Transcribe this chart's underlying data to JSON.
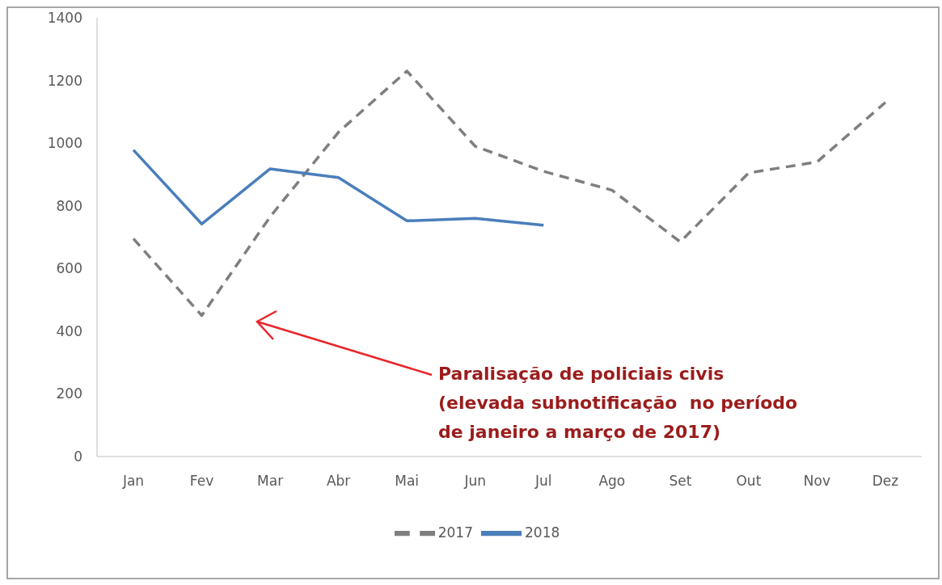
{
  "chart_data": {
    "type": "line",
    "categories": [
      "Jan",
      "Fev",
      "Mar",
      "Abr",
      "Mai",
      "Jun",
      "Jul",
      "Ago",
      "Set",
      "Out",
      "Nov",
      "Dez"
    ],
    "series": [
      {
        "name": "2017",
        "color": "#7f7f7f",
        "line_style": "dashed",
        "values": [
          695,
          450,
          765,
          1035,
          1230,
          990,
          910,
          850,
          685,
          905,
          940,
          1130
        ]
      },
      {
        "name": "2018",
        "color": "#4a7ebb",
        "line_style": "solid",
        "values": [
          978,
          742,
          918,
          890,
          752,
          760,
          738,
          null,
          null,
          null,
          null,
          null
        ]
      }
    ],
    "ylim": [
      0,
      1400
    ],
    "yticks": [
      0,
      200,
      400,
      600,
      800,
      1000,
      1200,
      1400
    ],
    "grid": false,
    "legend": "bottom",
    "marker": "none",
    "annotations": [
      "Paralisação de policiais civis\n(elevada subnotificação  no período\nde janeiro a março de 2017)"
    ]
  }
}
